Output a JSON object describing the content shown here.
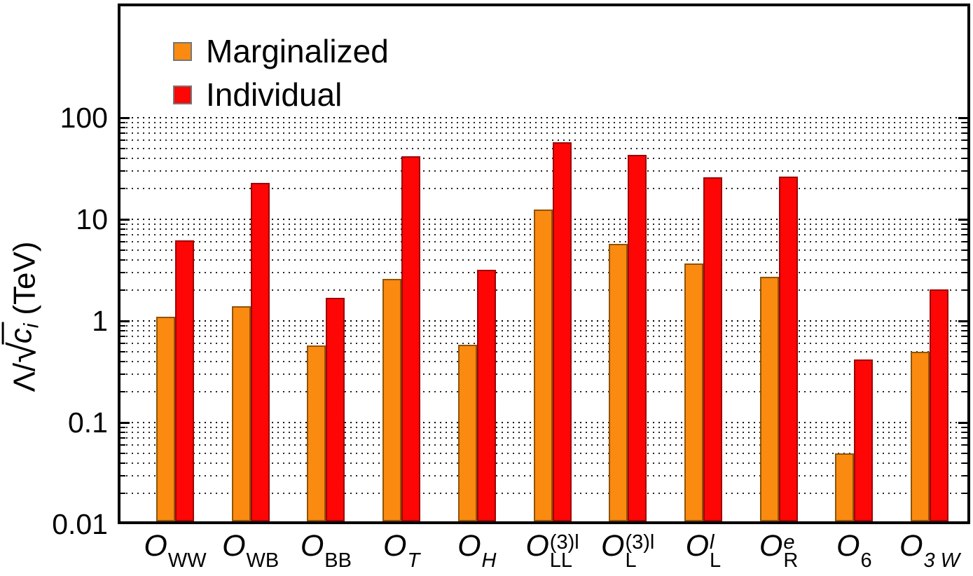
{
  "legend": {
    "items": [
      {
        "label": "Marginalized"
      },
      {
        "label": "Individual"
      }
    ]
  },
  "y_axis": {
    "tick_labels": [
      "100",
      "10",
      "1",
      "0.1",
      "0.01"
    ],
    "label_prefix": "Λ/",
    "radical_icon": "√",
    "radicand": "c",
    "radicand_sub": "i",
    "unit_suffix": "(TeV)"
  },
  "x_labels": [
    {
      "base": "O",
      "sub": "WW",
      "sup": "",
      "sub_italic": false,
      "sup_italic": false
    },
    {
      "base": "O",
      "sub": "WB",
      "sup": "",
      "sub_italic": false,
      "sup_italic": false
    },
    {
      "base": "O",
      "sub": "BB",
      "sup": "",
      "sub_italic": false,
      "sup_italic": false
    },
    {
      "base": "O",
      "sub": "T",
      "sup": "",
      "sub_italic": true,
      "sup_italic": false
    },
    {
      "base": "O",
      "sub": "H",
      "sup": "",
      "sub_italic": true,
      "sup_italic": false
    },
    {
      "base": "O",
      "sub": "LL",
      "sup": "(3)l",
      "sub_italic": false,
      "sup_italic": false
    },
    {
      "base": "O",
      "sub": "L",
      "sup": "(3)l",
      "sub_italic": false,
      "sup_italic": false
    },
    {
      "base": "O",
      "sub": "L",
      "sup": "l",
      "sub_italic": false,
      "sup_italic": true
    },
    {
      "base": "O",
      "sub": "R",
      "sup": "e",
      "sub_italic": false,
      "sup_italic": true
    },
    {
      "base": "O",
      "sub": "6",
      "sup": "",
      "sub_italic": false,
      "sup_italic": false
    },
    {
      "base": "O",
      "sub": "3 W",
      "sup": "",
      "sub_italic": true,
      "sup_italic": false
    }
  ],
  "chart_data": {
    "type": "bar",
    "scale": "log-y",
    "title": "",
    "xlabel": "",
    "ylabel": "Λ/√(c_i) (TeV)",
    "ylim": [
      0.01,
      1000
    ],
    "yticks": [
      0.01,
      0.1,
      1,
      10,
      100
    ],
    "grid": "dotted horizontal log minor+major gridlines from 0.02 to 100",
    "legend_position": "top-left inside plot",
    "categories": [
      "O_WW",
      "O_WB",
      "O_BB",
      "O_T",
      "O_H",
      "O_LL^(3)l",
      "O_L^(3)l",
      "O_L^l",
      "O_R^e",
      "O_6",
      "O_3W"
    ],
    "series": [
      {
        "name": "Marginalized",
        "color": "#FB8A11",
        "edge_color": "#8E5508",
        "values": [
          1.1,
          1.4,
          0.57,
          2.6,
          0.58,
          12.5,
          5.7,
          3.7,
          2.7,
          0.05,
          0.5
        ]
      },
      {
        "name": "Individual",
        "color": "#FE0606",
        "edge_color": "#9E0505",
        "values": [
          6.2,
          23,
          1.7,
          42,
          3.2,
          57,
          43,
          26,
          26.5,
          0.42,
          2.05
        ]
      }
    ]
  }
}
